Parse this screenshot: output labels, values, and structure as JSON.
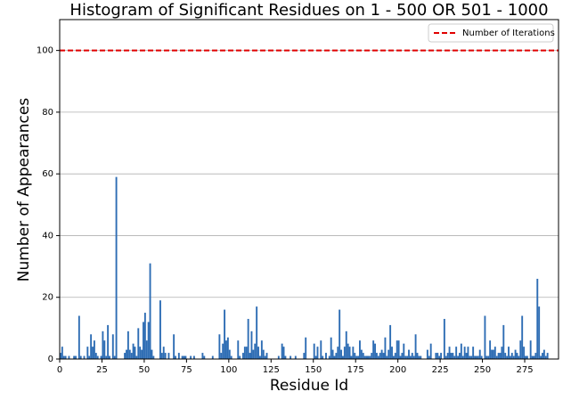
{
  "chart_data": {
    "type": "histogram",
    "title": "Histogram of Significant Residues on 1 - 500 OR 501 - 1000",
    "x_label": "Residue Id",
    "y_label": "Number of Appearances",
    "color": "#2e6db4",
    "xlim": [
      0,
      295
    ],
    "ylim": [
      0,
      110
    ],
    "xticks": [
      0,
      25,
      50,
      75,
      100,
      125,
      150,
      175,
      200,
      225,
      250,
      275
    ],
    "yticks": [
      0,
      20,
      40,
      60,
      80,
      100
    ],
    "grid": true,
    "legend": "upper right",
    "reference_line": {
      "name": "Number of Iterations",
      "value": 100,
      "color": "#e00000"
    },
    "bins": [
      0,
      1,
      2,
      3,
      4,
      5,
      6,
      7,
      8,
      9,
      10,
      11,
      12,
      13,
      14,
      15,
      16,
      17,
      18,
      19,
      20,
      21,
      22,
      23,
      24,
      25,
      26,
      27,
      28,
      29,
      30,
      31,
      32,
      33,
      34,
      35,
      36,
      37,
      38,
      39,
      40,
      41,
      42,
      43,
      44,
      45,
      46,
      47,
      48,
      49,
      50,
      51,
      52,
      53,
      54,
      55,
      56,
      57,
      58,
      59,
      60,
      61,
      62,
      63,
      64,
      65,
      66,
      67,
      68,
      69,
      70,
      71,
      72,
      73,
      74,
      75,
      76,
      77,
      78,
      79,
      80,
      81,
      82,
      83,
      84,
      85,
      86,
      87,
      88,
      89,
      90,
      91,
      92,
      93,
      94,
      95,
      96,
      97,
      98,
      99,
      100,
      101,
      102,
      103,
      104,
      105,
      106,
      107,
      108,
      109,
      110,
      111,
      112,
      113,
      114,
      115,
      116,
      117,
      118,
      119,
      120,
      121,
      122,
      123,
      124,
      125,
      126,
      127,
      128,
      129,
      130,
      131,
      132,
      133,
      134,
      135,
      136,
      137,
      138,
      139,
      140,
      141,
      142,
      143,
      144,
      145,
      146,
      147,
      148,
      149,
      150,
      151,
      152,
      153,
      154,
      155,
      156,
      157,
      158,
      159,
      160,
      161,
      162,
      163,
      164,
      165,
      166,
      167,
      168,
      169,
      170,
      171,
      172,
      173,
      174,
      175,
      176,
      177,
      178,
      179,
      180,
      181,
      182,
      183,
      184,
      185,
      186,
      187,
      188,
      189,
      190,
      191,
      192,
      193,
      194,
      195,
      196,
      197,
      198,
      199,
      200,
      201,
      202,
      203,
      204,
      205,
      206,
      207,
      208,
      209,
      210,
      211,
      212,
      213,
      214,
      215,
      216,
      217,
      218,
      219,
      220,
      221,
      222,
      223,
      224,
      225,
      226,
      227,
      228,
      229,
      230,
      231,
      232,
      233,
      234,
      235,
      236,
      237,
      238,
      239,
      240,
      241,
      242,
      243,
      244,
      245,
      246,
      247,
      248,
      249,
      250,
      251,
      252,
      253,
      254,
      255,
      256,
      257,
      258,
      259,
      260,
      261,
      262,
      263,
      264,
      265,
      266,
      267,
      268,
      269,
      270,
      271,
      272,
      273,
      274,
      275,
      276,
      277,
      278,
      279,
      280,
      281,
      282,
      283,
      284,
      285,
      286,
      287,
      288,
      289,
      290
    ],
    "values": [
      2,
      4,
      1,
      1,
      0,
      1,
      0,
      0,
      1,
      1,
      0,
      14,
      1,
      0,
      1,
      0,
      4,
      1,
      8,
      4,
      6,
      2,
      1,
      0,
      1,
      9,
      6,
      1,
      11,
      1,
      0,
      8,
      1,
      59,
      0,
      0,
      0,
      0,
      2,
      3,
      9,
      3,
      2,
      5,
      4,
      1,
      10,
      4,
      3,
      12,
      15,
      6,
      12,
      31,
      3,
      1,
      0,
      0,
      0,
      19,
      2,
      4,
      2,
      0,
      2,
      0,
      0,
      8,
      1,
      0,
      2,
      0,
      1,
      1,
      1,
      0,
      0,
      1,
      0,
      1,
      0,
      0,
      0,
      0,
      2,
      1,
      0,
      0,
      0,
      0,
      1,
      0,
      0,
      0,
      8,
      2,
      5,
      16,
      6,
      7,
      3,
      1,
      0,
      0,
      0,
      6,
      1,
      0,
      2,
      4,
      4,
      13,
      2,
      9,
      3,
      5,
      17,
      4,
      1,
      6,
      3,
      1,
      2,
      0,
      0,
      0,
      0,
      0,
      0,
      1,
      0,
      5,
      4,
      1,
      0,
      0,
      1,
      0,
      0,
      1,
      0,
      0,
      0,
      0,
      2,
      7,
      0,
      0,
      0,
      0,
      5,
      1,
      4,
      0,
      6,
      1,
      0,
      2,
      0,
      1,
      7,
      3,
      1,
      2,
      4,
      16,
      3,
      1,
      4,
      9,
      5,
      4,
      1,
      4,
      2,
      1,
      1,
      6,
      3,
      2,
      1,
      1,
      1,
      1,
      2,
      6,
      5,
      2,
      1,
      2,
      3,
      2,
      7,
      1,
      3,
      11,
      4,
      1,
      2,
      6,
      6,
      1,
      2,
      5,
      1,
      1,
      3,
      1,
      2,
      1,
      8,
      2,
      1,
      1,
      0,
      0,
      0,
      3,
      1,
      5,
      0,
      0,
      2,
      2,
      1,
      2,
      0,
      13,
      1,
      2,
      4,
      2,
      2,
      1,
      4,
      1,
      2,
      5,
      1,
      4,
      2,
      4,
      1,
      1,
      4,
      1,
      1,
      1,
      3,
      1,
      0,
      14,
      1,
      1,
      6,
      3,
      3,
      4,
      1,
      2,
      2,
      4,
      11,
      2,
      1,
      4,
      1,
      2,
      1,
      3,
      2,
      1,
      6,
      14,
      4,
      1,
      1,
      0,
      6,
      1,
      1,
      2,
      26,
      17,
      1,
      2,
      3,
      1,
      2,
      0
    ]
  }
}
